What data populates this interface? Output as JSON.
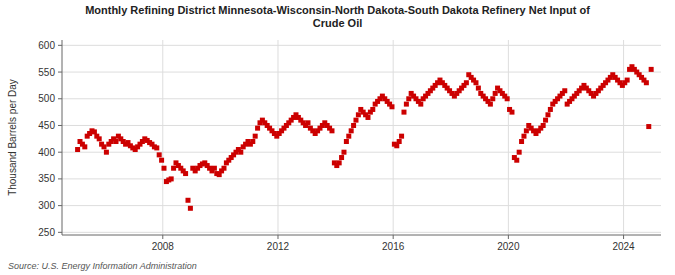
{
  "chart_data": {
    "type": "scatter",
    "title": "Monthly Refining District Minnesota-Wisconsin-North Dakota-South Dakota Refinery Net Input of\nCrude Oil",
    "y_label": "Thousand Barrels per Day",
    "source": "Source: U.S. Energy Information Administration",
    "color": "#cc0000",
    "marker": "square",
    "grid": true,
    "xlim": [
      2004.5,
      2025.3
    ],
    "xticks": [
      2008,
      2012,
      2016,
      2020,
      2024
    ],
    "ylim": [
      245,
      610
    ],
    "yticks": [
      250,
      300,
      350,
      400,
      450,
      500,
      550,
      600
    ],
    "x": [
      2005.0416667,
      2005.125,
      2005.2083333,
      2005.2916667,
      2005.375,
      2005.4583333,
      2005.5416667,
      2005.625,
      2005.7083333,
      2005.7916667,
      2005.875,
      2005.9583333,
      2006.0416667,
      2006.125,
      2006.2083333,
      2006.2916667,
      2006.375,
      2006.4583333,
      2006.5416667,
      2006.625,
      2006.7083333,
      2006.7916667,
      2006.875,
      2006.9583333,
      2007.0416667,
      2007.125,
      2007.2083333,
      2007.2916667,
      2007.375,
      2007.4583333,
      2007.5416667,
      2007.625,
      2007.7083333,
      2007.7916667,
      2007.875,
      2007.9583333,
      2008.0416667,
      2008.125,
      2008.2083333,
      2008.2916667,
      2008.375,
      2008.4583333,
      2008.5416667,
      2008.625,
      2008.7083333,
      2008.7916667,
      2008.875,
      2008.9583333,
      2009.0416667,
      2009.125,
      2009.2083333,
      2009.2916667,
      2009.375,
      2009.4583333,
      2009.5416667,
      2009.625,
      2009.7083333,
      2009.7916667,
      2009.875,
      2009.9583333,
      2010.0416667,
      2010.125,
      2010.2083333,
      2010.2916667,
      2010.375,
      2010.4583333,
      2010.5416667,
      2010.625,
      2010.7083333,
      2010.7916667,
      2010.875,
      2010.9583333,
      2011.0416667,
      2011.125,
      2011.2083333,
      2011.2916667,
      2011.375,
      2011.4583333,
      2011.5416667,
      2011.625,
      2011.7083333,
      2011.7916667,
      2011.875,
      2011.9583333,
      2012.0416667,
      2012.125,
      2012.2083333,
      2012.2916667,
      2012.375,
      2012.4583333,
      2012.5416667,
      2012.625,
      2012.7083333,
      2012.7916667,
      2012.875,
      2012.9583333,
      2013.0416667,
      2013.125,
      2013.2083333,
      2013.2916667,
      2013.375,
      2013.4583333,
      2013.5416667,
      2013.625,
      2013.7083333,
      2013.7916667,
      2013.875,
      2013.9583333,
      2014.0416667,
      2014.125,
      2014.2083333,
      2014.2916667,
      2014.375,
      2014.4583333,
      2014.5416667,
      2014.625,
      2014.7083333,
      2014.7916667,
      2014.875,
      2014.9583333,
      2015.0416667,
      2015.125,
      2015.2083333,
      2015.2916667,
      2015.375,
      2015.4583333,
      2015.5416667,
      2015.625,
      2015.7083333,
      2015.7916667,
      2015.875,
      2015.9583333,
      2016.0416667,
      2016.125,
      2016.2083333,
      2016.2916667,
      2016.375,
      2016.4583333,
      2016.5416667,
      2016.625,
      2016.7083333,
      2016.7916667,
      2016.875,
      2016.9583333,
      2017.0416667,
      2017.125,
      2017.2083333,
      2017.2916667,
      2017.375,
      2017.4583333,
      2017.5416667,
      2017.625,
      2017.7083333,
      2017.7916667,
      2017.875,
      2017.9583333,
      2018.0416667,
      2018.125,
      2018.2083333,
      2018.2916667,
      2018.375,
      2018.4583333,
      2018.5416667,
      2018.625,
      2018.7083333,
      2018.7916667,
      2018.875,
      2018.9583333,
      2019.0416667,
      2019.125,
      2019.2083333,
      2019.2916667,
      2019.375,
      2019.4583333,
      2019.5416667,
      2019.625,
      2019.7083333,
      2019.7916667,
      2019.875,
      2019.9583333,
      2020.0416667,
      2020.125,
      2020.2083333,
      2020.2916667,
      2020.375,
      2020.4583333,
      2020.5416667,
      2020.625,
      2020.7083333,
      2020.7916667,
      2020.875,
      2020.9583333,
      2021.0416667,
      2021.125,
      2021.2083333,
      2021.2916667,
      2021.375,
      2021.4583333,
      2021.5416667,
      2021.625,
      2021.7083333,
      2021.7916667,
      2021.875,
      2021.9583333,
      2022.0416667,
      2022.125,
      2022.2083333,
      2022.2916667,
      2022.375,
      2022.4583333,
      2022.5416667,
      2022.625,
      2022.7083333,
      2022.7916667,
      2022.875,
      2022.9583333,
      2023.0416667,
      2023.125,
      2023.2083333,
      2023.2916667,
      2023.375,
      2023.4583333,
      2023.5416667,
      2023.625,
      2023.7083333,
      2023.7916667,
      2023.875,
      2023.9583333,
      2024.0416667,
      2024.125,
      2024.2083333,
      2024.2916667,
      2024.375,
      2024.4583333,
      2024.5416667,
      2024.625,
      2024.7083333,
      2024.7916667,
      2024.875,
      2024.9583333
    ],
    "values": [
      405,
      420,
      415,
      410,
      430,
      435,
      440,
      438,
      430,
      425,
      415,
      410,
      400,
      415,
      420,
      425,
      420,
      430,
      425,
      420,
      415,
      418,
      412,
      408,
      405,
      410,
      415,
      420,
      425,
      422,
      418,
      415,
      410,
      408,
      395,
      385,
      370,
      345,
      348,
      350,
      370,
      380,
      375,
      370,
      365,
      360,
      310,
      295,
      370,
      365,
      370,
      375,
      378,
      380,
      375,
      370,
      365,
      370,
      360,
      358,
      365,
      370,
      380,
      385,
      390,
      395,
      400,
      405,
      400,
      410,
      415,
      420,
      415,
      420,
      430,
      445,
      455,
      460,
      455,
      450,
      445,
      440,
      435,
      430,
      435,
      440,
      445,
      450,
      455,
      460,
      465,
      470,
      465,
      460,
      455,
      450,
      455,
      445,
      440,
      435,
      440,
      445,
      450,
      455,
      450,
      445,
      440,
      380,
      375,
      380,
      390,
      400,
      420,
      430,
      440,
      450,
      460,
      470,
      480,
      475,
      470,
      465,
      475,
      480,
      490,
      495,
      500,
      505,
      500,
      495,
      490,
      485,
      415,
      412,
      420,
      430,
      475,
      490,
      500,
      510,
      505,
      500,
      495,
      490,
      500,
      505,
      510,
      515,
      520,
      525,
      530,
      535,
      530,
      525,
      520,
      515,
      510,
      505,
      510,
      515,
      520,
      525,
      530,
      545,
      540,
      535,
      530,
      520,
      510,
      505,
      500,
      495,
      490,
      500,
      510,
      520,
      515,
      510,
      505,
      500,
      480,
      475,
      390,
      385,
      400,
      420,
      430,
      440,
      450,
      445,
      440,
      435,
      440,
      445,
      450,
      460,
      470,
      480,
      490,
      495,
      500,
      505,
      510,
      515,
      490,
      495,
      500,
      505,
      510,
      515,
      520,
      525,
      520,
      515,
      510,
      505,
      510,
      515,
      520,
      525,
      530,
      535,
      540,
      545,
      540,
      535,
      530,
      525,
      530,
      535,
      555,
      560,
      555,
      550,
      545,
      540,
      535,
      530,
      448,
      555
    ]
  }
}
